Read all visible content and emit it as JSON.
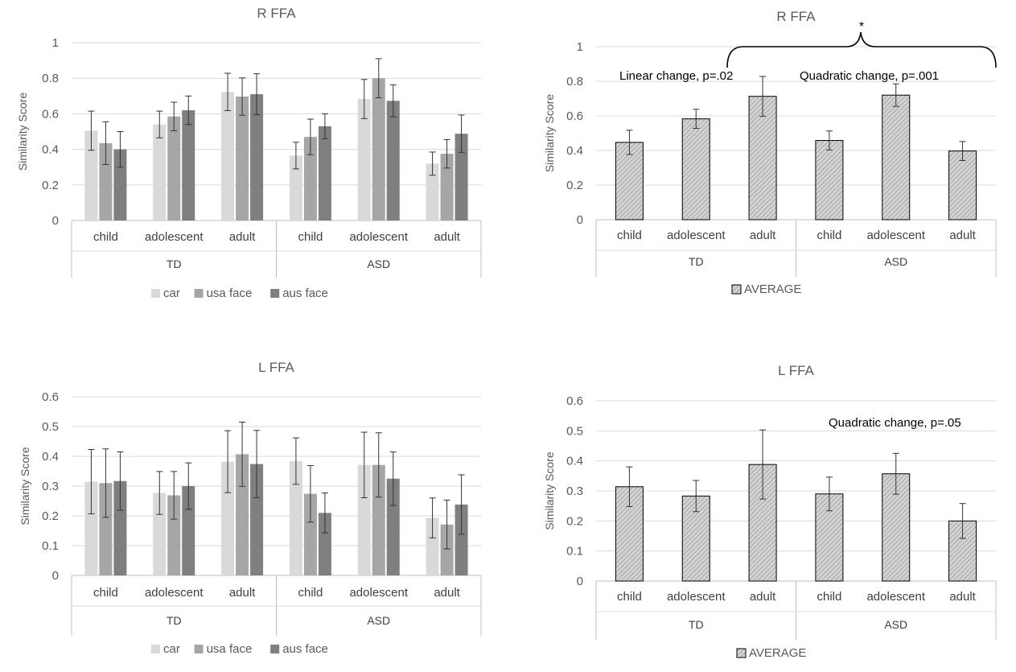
{
  "chart_data": [
    {
      "id": "tl",
      "type": "bar",
      "title": "R FFA",
      "ylabel": "Similarity Score",
      "ylim": [
        0,
        1
      ],
      "yticks": [
        "0",
        "0.2",
        "0.4",
        "0.6",
        "0.8",
        "1"
      ],
      "categories": [
        "child",
        "adolescent",
        "adult",
        "child",
        "adolescent",
        "adult"
      ],
      "groups": [
        "TD",
        "ASD"
      ],
      "series": [
        {
          "name": "car",
          "color": "#d9d9d9",
          "values": [
            0.505,
            0.54,
            0.723,
            0.365,
            0.683,
            0.32
          ],
          "errors": [
            0.11,
            0.075,
            0.105,
            0.075,
            0.11,
            0.065
          ]
        },
        {
          "name": "usa face",
          "color": "#a6a6a6",
          "values": [
            0.435,
            0.585,
            0.697,
            0.47,
            0.8,
            0.375
          ],
          "errors": [
            0.12,
            0.08,
            0.105,
            0.1,
            0.11,
            0.08
          ]
        },
        {
          "name": "aus face",
          "color": "#7f7f7f",
          "values": [
            0.4,
            0.62,
            0.71,
            0.53,
            0.673,
            0.488
          ],
          "errors": [
            0.1,
            0.08,
            0.115,
            0.07,
            0.09,
            0.105
          ]
        }
      ]
    },
    {
      "id": "tr",
      "type": "bar",
      "title": "R FFA",
      "ylabel": "Similarity Score",
      "ylim": [
        0,
        1
      ],
      "yticks": [
        "0",
        "0.2",
        "0.4",
        "0.6",
        "0.8",
        "1"
      ],
      "categories": [
        "child",
        "adolescent",
        "adult",
        "child",
        "adolescent",
        "adult"
      ],
      "groups": [
        "TD",
        "ASD"
      ],
      "series": [
        {
          "name": "AVERAGE",
          "color": "#d0d0d0",
          "hatch": true,
          "values": [
            0.447,
            0.583,
            0.713,
            0.458,
            0.72,
            0.397
          ],
          "errors": [
            0.07,
            0.055,
            0.115,
            0.055,
            0.065,
            0.055
          ]
        }
      ],
      "annotations": [
        "Linear change, p=.02",
        "Quadratic change, p=.001",
        "*"
      ]
    },
    {
      "id": "bl",
      "type": "bar",
      "title": "L FFA",
      "ylabel": "Similarity Score",
      "ylim": [
        0,
        0.6
      ],
      "yticks": [
        "0",
        "0.1",
        "0.2",
        "0.3",
        "0.4",
        "0.5",
        "0.6"
      ],
      "categories": [
        "child",
        "adolescent",
        "adult",
        "child",
        "adolescent",
        "adult"
      ],
      "groups": [
        "TD",
        "ASD"
      ],
      "series": [
        {
          "name": "car",
          "color": "#d9d9d9",
          "values": [
            0.315,
            0.277,
            0.382,
            0.384,
            0.371,
            0.193
          ],
          "errors": [
            0.108,
            0.072,
            0.104,
            0.078,
            0.11,
            0.067
          ]
        },
        {
          "name": "usa face",
          "color": "#a6a6a6",
          "values": [
            0.31,
            0.269,
            0.407,
            0.274,
            0.371,
            0.171
          ],
          "errors": [
            0.115,
            0.08,
            0.108,
            0.095,
            0.108,
            0.082
          ]
        },
        {
          "name": "aus face",
          "color": "#7f7f7f",
          "values": [
            0.317,
            0.3,
            0.374,
            0.21,
            0.325,
            0.238
          ],
          "errors": [
            0.098,
            0.078,
            0.113,
            0.067,
            0.09,
            0.1
          ]
        }
      ]
    },
    {
      "id": "br",
      "type": "bar",
      "title": "L FFA",
      "ylabel": "Similarity Score",
      "ylim": [
        0,
        0.6
      ],
      "yticks": [
        "0",
        "0.1",
        "0.2",
        "0.3",
        "0.4",
        "0.5",
        "0.6"
      ],
      "categories": [
        "child",
        "adolescent",
        "adult",
        "child",
        "adolescent",
        "adult"
      ],
      "groups": [
        "TD",
        "ASD"
      ],
      "series": [
        {
          "name": "AVERAGE",
          "color": "#d0d0d0",
          "hatch": true,
          "values": [
            0.314,
            0.283,
            0.388,
            0.29,
            0.357,
            0.2
          ],
          "errors": [
            0.066,
            0.052,
            0.115,
            0.056,
            0.068,
            0.058
          ]
        }
      ],
      "annotations": [
        "Quadratic change, p=.05"
      ]
    }
  ]
}
